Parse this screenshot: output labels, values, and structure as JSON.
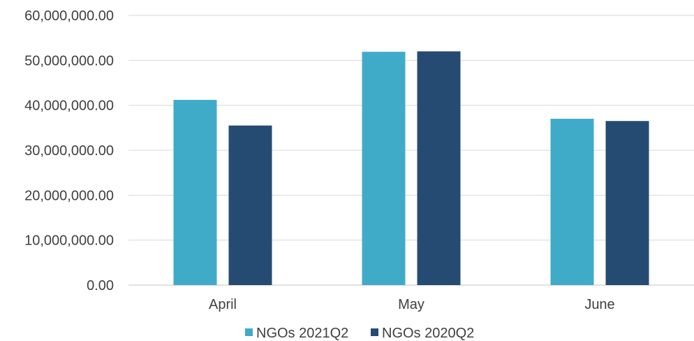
{
  "chart_data": {
    "type": "bar",
    "title": "",
    "xlabel": "",
    "ylabel": "",
    "categories": [
      "April",
      "May",
      "June"
    ],
    "series": [
      {
        "name": "NGOs 2021Q2",
        "color": "#40abc8",
        "values": [
          41200000,
          51900000,
          37000000
        ]
      },
      {
        "name": "NGOs 2020Q2",
        "color": "#264b73",
        "values": [
          35500000,
          52000000,
          36500000
        ]
      }
    ],
    "ylim": [
      0,
      60000000
    ],
    "yticks": [
      0,
      10000000,
      20000000,
      30000000,
      40000000,
      50000000,
      60000000
    ],
    "ytick_labels": [
      "0.00",
      "10,000,000.00",
      "20,000,000.00",
      "30,000,000.00",
      "40,000,000.00",
      "50,000,000.00",
      "60,000,000.00"
    ],
    "grid": true,
    "legend": "bottom"
  }
}
